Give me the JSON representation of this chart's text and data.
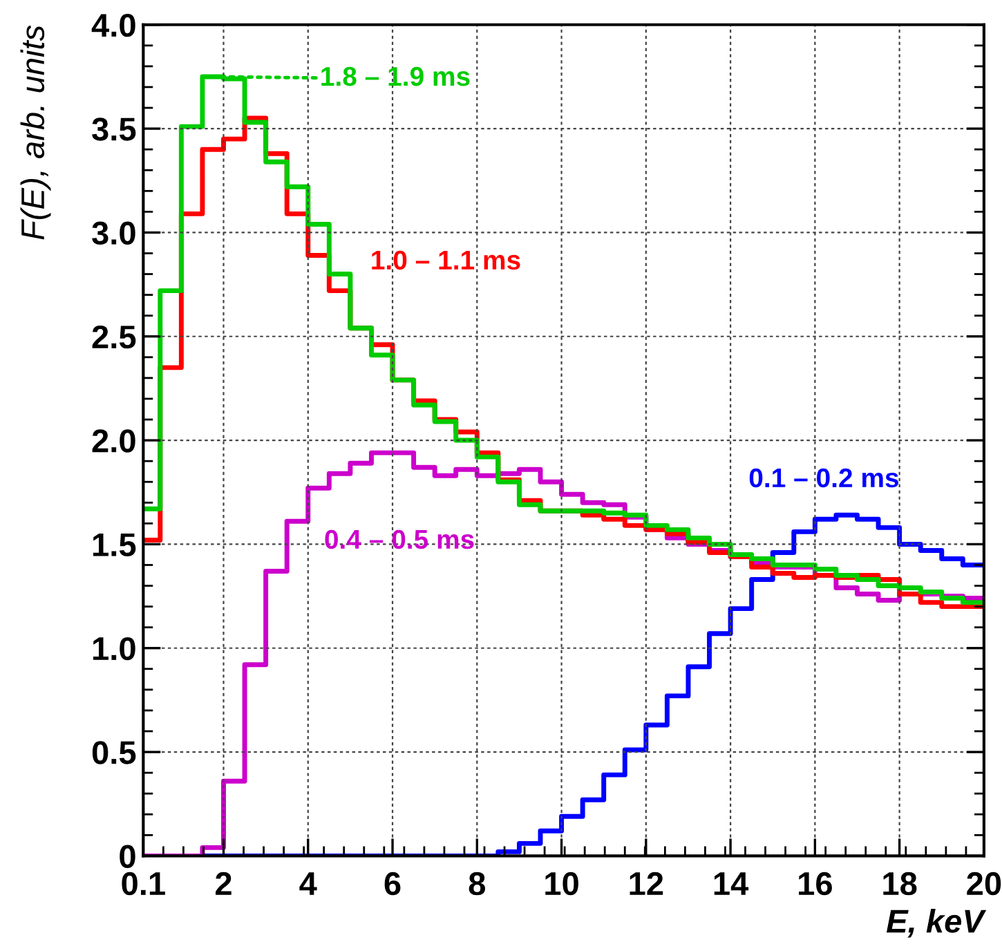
{
  "chart_data": {
    "type": "histogram",
    "xlabel": "E, keV",
    "ylabel": "F(E), arb. units",
    "bins": [
      0.1,
      0.5,
      1.0,
      1.5,
      2.0,
      2.5,
      3.0,
      3.5,
      4.0,
      4.5,
      5.0,
      5.5,
      6.0,
      6.5,
      7.0,
      7.5,
      8.0,
      8.5,
      9.0,
      9.5,
      10.0,
      10.5,
      11.0,
      11.5,
      12.0,
      12.5,
      13.0,
      13.5,
      14.0,
      14.5,
      15.0,
      15.5,
      16.0,
      16.5,
      17.0,
      17.5,
      18.0,
      18.5,
      19.0,
      19.5,
      20.0
    ],
    "series": [
      {
        "name": "0.1 – 0.2 ms",
        "color": "#0000ff",
        "values": [
          0,
          0,
          0,
          0,
          0,
          0,
          0,
          0,
          0,
          0,
          0,
          0,
          0,
          0,
          0,
          0,
          0,
          0.02,
          0.06,
          0.12,
          0.19,
          0.27,
          0.39,
          0.51,
          0.63,
          0.77,
          0.91,
          1.07,
          1.19,
          1.33,
          1.46,
          1.56,
          1.62,
          1.64,
          1.62,
          1.58,
          1.5,
          1.47,
          1.43,
          1.4
        ]
      },
      {
        "name": "0.4 – 0.5 ms",
        "color": "#cc00cc",
        "values": [
          0,
          0,
          0,
          0.04,
          0.36,
          0.92,
          1.37,
          1.61,
          1.77,
          1.84,
          1.89,
          1.94,
          1.94,
          1.87,
          1.83,
          1.86,
          1.83,
          1.84,
          1.86,
          1.8,
          1.74,
          1.7,
          1.69,
          1.63,
          1.57,
          1.53,
          1.5,
          1.47,
          1.44,
          1.41,
          1.39,
          1.39,
          1.35,
          1.29,
          1.26,
          1.23,
          1.26,
          1.26,
          1.25,
          1.24
        ]
      },
      {
        "name": "1.0 – 1.1 ms",
        "color": "#ff0000",
        "values": [
          1.52,
          2.35,
          3.09,
          3.4,
          3.45,
          3.55,
          3.38,
          3.09,
          2.89,
          2.72,
          2.54,
          2.46,
          2.29,
          2.19,
          2.1,
          2.04,
          1.94,
          1.81,
          1.71,
          1.66,
          1.66,
          1.64,
          1.62,
          1.59,
          1.57,
          1.55,
          1.51,
          1.46,
          1.44,
          1.39,
          1.36,
          1.34,
          1.35,
          1.34,
          1.35,
          1.33,
          1.26,
          1.22,
          1.2,
          1.2
        ]
      },
      {
        "name": "1.8 – 1.9 ms",
        "color": "#00cc00",
        "values": [
          1.67,
          2.72,
          3.51,
          3.75,
          3.74,
          3.53,
          3.34,
          3.22,
          3.04,
          2.8,
          2.54,
          2.41,
          2.29,
          2.17,
          2.09,
          2.0,
          1.92,
          1.8,
          1.69,
          1.66,
          1.66,
          1.66,
          1.65,
          1.64,
          1.59,
          1.57,
          1.53,
          1.5,
          1.45,
          1.43,
          1.4,
          1.4,
          1.38,
          1.35,
          1.33,
          1.3,
          1.29,
          1.27,
          1.24,
          1.22
        ]
      }
    ],
    "xlim": [
      0.1,
      20
    ],
    "xticks": [
      0.1,
      2,
      4,
      6,
      8,
      10,
      12,
      14,
      16,
      18,
      20
    ],
    "ylim": [
      0,
      4.0
    ],
    "yticks": [
      0,
      0.5,
      {
        "value": 1,
        "label": "1.0"
      },
      1.5,
      {
        "value": 2,
        "label": "2.0"
      },
      2.5,
      {
        "value": 3,
        "label": "3.0"
      },
      3.5,
      {
        "value": 4,
        "label": "4.0"
      }
    ],
    "grid": true
  }
}
